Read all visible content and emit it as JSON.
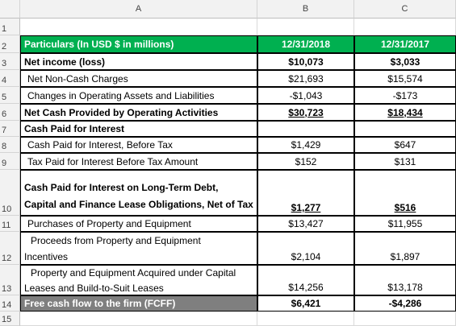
{
  "columns": {
    "a": "A",
    "b": "B",
    "c": "C"
  },
  "rows": [
    {
      "n": "1",
      "a": "",
      "b": "",
      "c": ""
    },
    {
      "n": "2",
      "a": "Particulars (In USD $ in millions)",
      "b": "12/31/2018",
      "c": "12/31/2017"
    },
    {
      "n": "3",
      "a": "Net income (loss)",
      "b": "$10,073",
      "c": "$3,033"
    },
    {
      "n": "4",
      "a": "Net Non-Cash Charges",
      "b": "$21,693",
      "c": "$15,574"
    },
    {
      "n": "5",
      "a": "Changes in Operating Assets and Liabilities",
      "b": "-$1,043",
      "c": "-$173"
    },
    {
      "n": "6",
      "a": "Net Cash Provided by Operating Activities",
      "b": "$30,723",
      "c": "$18,434"
    },
    {
      "n": "7",
      "a": "Cash Paid for Interest",
      "b": "",
      "c": ""
    },
    {
      "n": "8",
      "a": "Cash Paid for Interest, Before Tax",
      "b": "$1,429",
      "c": "$647"
    },
    {
      "n": "9",
      "a": "Tax Paid for Interest Before Tax Amount",
      "b": "$152",
      "c": "$131"
    },
    {
      "n": "10",
      "a1": "Cash Paid for Interest on Long-Term Debt,",
      "a2": "Capital and Finance Lease Obligations, Net of Tax",
      "b": "$1,277",
      "c": "$516"
    },
    {
      "n": "11",
      "a": "Purchases of Property and Equipment",
      "b": "$13,427",
      "c": "$11,955"
    },
    {
      "n": "12",
      "a1": "Proceeds from Property and Equipment",
      "a2": "Incentives",
      "b": "$2,104",
      "c": "$1,897"
    },
    {
      "n": "13",
      "a1": "Property and Equipment Acquired under Capital",
      "a2": "Leases and Build-to-Suit Leases",
      "b": "$14,256",
      "c": "$13,178"
    },
    {
      "n": "14",
      "a": "Free cash flow to the firm (FCFF)",
      "b": "$6,421",
      "c": "-$4,286"
    },
    {
      "n": "15",
      "a": "",
      "b": "",
      "c": ""
    }
  ],
  "colors": {
    "header_green": "#00b050",
    "fcff_grey": "#7f7f7f"
  }
}
